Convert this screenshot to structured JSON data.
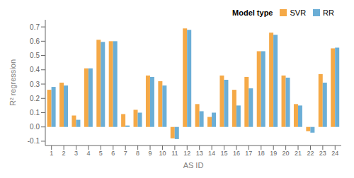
{
  "chart_data": {
    "type": "bar",
    "categories": [
      "1",
      "2",
      "3",
      "4",
      "5",
      "6",
      "7",
      "8",
      "9",
      "10",
      "11",
      "12",
      "13",
      "14",
      "15",
      "16",
      "17",
      "18",
      "19",
      "20",
      "21",
      "22",
      "23",
      "24"
    ],
    "series": [
      {
        "name": "SVR",
        "color": "#F5A947",
        "values": [
          0.26,
          0.31,
          0.08,
          0.41,
          0.61,
          0.6,
          0.09,
          0.12,
          0.36,
          0.32,
          -0.08,
          0.69,
          0.16,
          0.07,
          0.36,
          0.26,
          0.35,
          0.53,
          0.66,
          0.36,
          0.16,
          -0.03,
          0.37,
          0.55
        ]
      },
      {
        "name": "RR",
        "color": "#6BAED6",
        "values": [
          0.28,
          0.29,
          0.05,
          0.41,
          0.595,
          0.6,
          0.01,
          0.1,
          0.35,
          0.29,
          -0.085,
          0.68,
          0.11,
          0.1,
          0.33,
          0.15,
          0.27,
          0.53,
          0.645,
          0.345,
          0.15,
          -0.04,
          0.31,
          0.555
        ]
      }
    ],
    "x_label": "AS ID",
    "y_label": "R² regression",
    "ylim": [
      -0.13,
      0.75
    ],
    "yticks": [
      -0.1,
      {
        "value": 0,
        "label": "0.0"
      },
      0.1,
      0.2,
      0.3,
      0.4,
      0.5,
      0.6,
      0.7
    ],
    "legend_title": "Model type",
    "legend": "upper right",
    "grid": false
  }
}
